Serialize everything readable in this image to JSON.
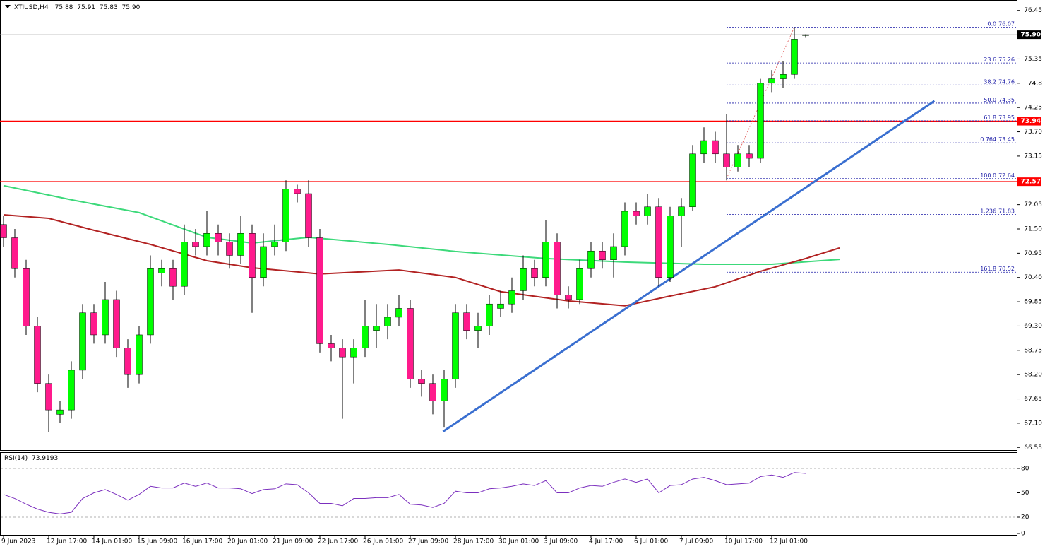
{
  "chart_data": {
    "type": "candlestick",
    "title": "XTIUSD,H4",
    "colors": {
      "up": "#00ff00",
      "down": "#ff1a8c",
      "wick": "#000000"
    },
    "categories": [
      "9 Jun 2023",
      null,
      null,
      null,
      "12 Jun 17:00",
      null,
      null,
      null,
      "14 Jun 01:00",
      null,
      null,
      null,
      "15 Jun 09:00",
      null,
      null,
      null,
      "16 Jun 17:00",
      null,
      null,
      null,
      "20 Jun 01:00",
      null,
      null,
      null,
      "21 Jun 09:00",
      null,
      null,
      null,
      "22 Jun 17:00",
      null,
      null,
      null,
      "26 Jun 01:00",
      null,
      null,
      null,
      "27 Jun 09:00",
      null,
      null,
      null,
      "28 Jun 17:00",
      null,
      null,
      null,
      "30 Jun 01:00",
      null,
      null,
      null,
      "3 Jul 09:00",
      null,
      null,
      null,
      "4 Jul 17:00",
      null,
      null,
      null,
      "6 Jul 01:00",
      null,
      null,
      null,
      "7 Jul 09:00",
      null,
      null,
      null,
      "10 Jul 17:00",
      null,
      null,
      null,
      "12 Jul 01:00",
      null,
      null,
      null
    ],
    "open": [
      71.6,
      71.3,
      70.6,
      69.3,
      68.0,
      67.3,
      67.4,
      68.3,
      69.6,
      69.1,
      69.9,
      68.8,
      68.2,
      69.1,
      70.5,
      70.6,
      70.2,
      71.2,
      71.1,
      71.4,
      71.2,
      70.9,
      71.4,
      70.4,
      71.1,
      71.2,
      72.4,
      72.3,
      71.3,
      68.9,
      68.8,
      68.6,
      68.8,
      69.2,
      69.3,
      69.5,
      69.7,
      68.1,
      68.0,
      67.6,
      68.1,
      69.6,
      69.2,
      69.3,
      69.7,
      69.8,
      70.1,
      70.6,
      70.4,
      71.2,
      70.0,
      69.9,
      70.6,
      71.0,
      70.8,
      71.1,
      71.9,
      71.8,
      72.0,
      70.4,
      71.8,
      72.0,
      73.2,
      73.5,
      73.2,
      72.9,
      73.2,
      73.1,
      74.8,
      74.9,
      75.0,
      75.88
    ],
    "high": [
      71.8,
      71.5,
      70.8,
      69.5,
      68.2,
      67.6,
      68.5,
      69.8,
      69.8,
      70.3,
      70.1,
      69.0,
      69.3,
      70.9,
      70.8,
      70.8,
      71.6,
      71.5,
      71.9,
      71.6,
      71.4,
      71.8,
      71.6,
      71.4,
      71.6,
      72.6,
      72.5,
      72.6,
      71.5,
      69.1,
      69.0,
      69.0,
      69.9,
      69.8,
      69.8,
      70.0,
      69.9,
      68.3,
      68.2,
      68.3,
      69.8,
      69.8,
      69.6,
      70.0,
      70.1,
      70.4,
      70.9,
      70.8,
      71.7,
      71.4,
      70.2,
      70.8,
      71.2,
      71.2,
      71.4,
      72.1,
      72.1,
      72.3,
      72.2,
      72.0,
      72.2,
      73.4,
      73.8,
      73.7,
      74.1,
      73.4,
      73.4,
      74.9,
      75.1,
      75.3,
      76.07,
      75.91
    ],
    "low": [
      71.1,
      70.4,
      69.1,
      67.8,
      66.9,
      67.1,
      67.2,
      68.1,
      68.9,
      68.9,
      68.6,
      67.9,
      68.0,
      68.9,
      70.2,
      69.9,
      70.0,
      70.9,
      70.9,
      70.9,
      70.6,
      70.7,
      69.6,
      70.2,
      70.9,
      71.0,
      72.1,
      71.1,
      68.7,
      68.5,
      67.2,
      68.0,
      68.6,
      68.8,
      69.0,
      69.3,
      67.9,
      67.7,
      67.3,
      67.0,
      67.9,
      69.0,
      68.8,
      69.1,
      69.5,
      69.6,
      69.9,
      70.2,
      70.2,
      69.7,
      69.7,
      69.8,
      70.4,
      70.6,
      70.4,
      70.9,
      71.6,
      71.6,
      70.2,
      70.3,
      71.1,
      71.9,
      73.0,
      73.0,
      72.6,
      72.8,
      72.9,
      73.0,
      74.6,
      74.7,
      74.9,
      75.83
    ],
    "close": [
      71.3,
      70.6,
      69.3,
      68.0,
      67.4,
      67.4,
      68.3,
      69.6,
      69.1,
      69.9,
      68.8,
      68.2,
      69.1,
      70.6,
      70.6,
      70.2,
      71.2,
      71.1,
      71.4,
      71.2,
      70.9,
      71.4,
      70.4,
      71.1,
      71.2,
      72.4,
      72.3,
      71.3,
      68.9,
      68.8,
      68.6,
      68.8,
      69.3,
      69.3,
      69.5,
      69.7,
      68.1,
      68.0,
      67.6,
      68.1,
      69.6,
      69.2,
      69.3,
      69.8,
      69.8,
      70.1,
      70.6,
      70.4,
      71.2,
      70.0,
      69.9,
      70.6,
      71.0,
      70.8,
      71.1,
      71.9,
      71.8,
      72.0,
      70.4,
      71.8,
      72.0,
      73.2,
      73.5,
      73.2,
      72.9,
      73.2,
      73.1,
      74.8,
      74.9,
      75.0,
      75.8,
      75.9
    ],
    "current_price": {
      "value": 75.9,
      "label": "75.90",
      "color": "#000000"
    },
    "ylim": [
      66.49,
      76.67
    ],
    "yticks": [
      76.45,
      75.35,
      74.8,
      {
        "value": 74.25,
        "label": "74.25"
      },
      {
        "value": 73.7,
        "label": "73.70"
      },
      73.15,
      72.05,
      {
        "value": 71.5,
        "label": "71.50"
      },
      70.95,
      {
        "value": 70.4,
        "label": "70.40"
      },
      69.85,
      {
        "value": 69.3,
        "label": "69.30"
      },
      68.75,
      {
        "value": 68.2,
        "label": "68.20"
      },
      67.65,
      {
        "value": 67.1,
        "label": "67.10"
      },
      66.55
    ],
    "moving_averages": [
      {
        "color": "#3cd97a",
        "x": [
          0,
          6,
          12,
          18,
          22,
          27,
          34,
          40,
          48,
          55,
          62,
          68,
          74
        ],
        "values": [
          72.48,
          72.16,
          71.87,
          71.31,
          71.18,
          71.31,
          71.15,
          70.99,
          70.83,
          70.75,
          70.7,
          70.7,
          70.81
        ]
      },
      {
        "color": "#b22222",
        "x": [
          0,
          4,
          8,
          13,
          18,
          22,
          28,
          35,
          40,
          44,
          50,
          55,
          59,
          63,
          67,
          71,
          74
        ],
        "values": [
          71.82,
          71.74,
          71.47,
          71.15,
          70.78,
          70.62,
          70.48,
          70.57,
          70.4,
          70.08,
          69.87,
          69.76,
          69.98,
          70.19,
          70.54,
          70.83,
          71.07
        ]
      }
    ],
    "horizontal_lines": [
      {
        "value": 73.94,
        "label": "73.94",
        "color": "#ff0000"
      },
      {
        "value": 72.57,
        "label": "72.57",
        "color": "#ff0000"
      }
    ],
    "trendline": {
      "color": "#3a6fd0",
      "x": [
        38.9,
        82.4
      ],
      "values": [
        66.91,
        74.4
      ]
    },
    "fibonacci": {
      "color": "#1a1aa6",
      "start_x": 64,
      "anchor": {
        "x": [
          64,
          70
        ],
        "values": [
          72.64,
          76.07
        ]
      },
      "levels": [
        {
          "level": "0.0",
          "value": 76.07
        },
        {
          "level": "23.6",
          "value": 75.26
        },
        {
          "level": "38.2",
          "value": 74.76
        },
        {
          "level": "50.0",
          "value": 74.35
        },
        {
          "level": "61.8",
          "value": 73.95
        },
        {
          "level": "0.764",
          "value": 73.45
        },
        {
          "level": "100.0",
          "value": 72.64
        },
        {
          "level": "1.236",
          "value": 71.83
        },
        {
          "level": "161.8",
          "value": 70.52
        }
      ]
    },
    "rsi": {
      "title": "RSI(14)",
      "color": "#7b2fbe",
      "values": [
        48,
        43,
        36,
        30,
        26,
        24,
        26,
        43,
        50,
        54,
        48,
        41,
        48,
        58,
        56,
        56,
        62,
        58,
        62,
        56,
        56,
        55,
        49,
        54,
        55,
        61,
        60,
        50,
        37,
        37,
        34,
        43,
        43,
        44,
        44,
        48,
        36,
        35,
        32,
        37,
        52,
        50,
        50,
        55,
        56,
        58,
        61,
        59,
        65,
        50,
        50,
        56,
        59,
        58,
        63,
        67,
        63,
        67,
        50,
        59,
        60,
        67,
        69,
        65,
        60,
        61,
        62,
        70,
        72,
        69,
        75,
        73.9193
      ],
      "ylim": [
        0,
        100
      ],
      "yticks": [
        80,
        50,
        20,
        0
      ],
      "levels": [
        80,
        20
      ]
    }
  }
}
